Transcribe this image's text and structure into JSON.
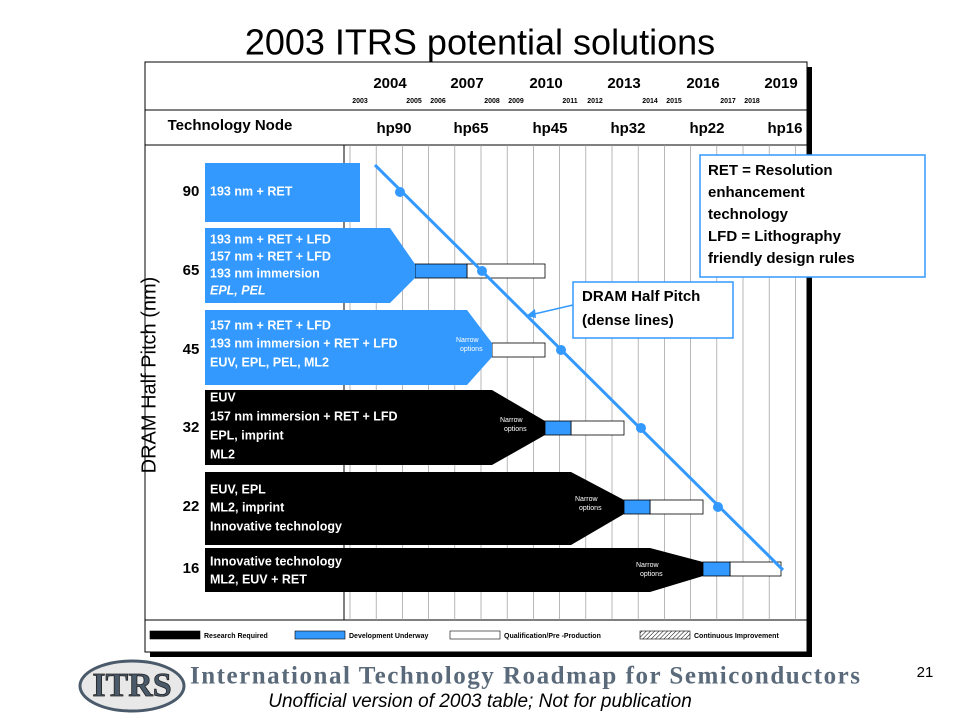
{
  "title": "2003 ITRS potential solutions",
  "header": {
    "major_years": [
      "2004",
      "2007",
      "2010",
      "2013",
      "2016",
      "2019"
    ],
    "minor_years": [
      "2003",
      "2005",
      "2006",
      "2008",
      "2009",
      "2011",
      "2012",
      "2014",
      "2015",
      "2017",
      "2018"
    ],
    "node_label": "Technology Node",
    "nodes": [
      "hp90",
      "hp65",
      "hp45",
      "hp32",
      "hp22",
      "hp16"
    ]
  },
  "y_axis_label": "DRAM Half Pitch (nm)",
  "half_pitches": [
    "90",
    "65",
    "45",
    "32",
    "22",
    "16"
  ],
  "bands": [
    {
      "lines": [
        "193 nm + RET"
      ]
    },
    {
      "lines": [
        "193 nm + RET + LFD",
        "157 nm + RET + LFD",
        "193 nm immersion",
        "EPL, PEL"
      ]
    },
    {
      "lines": [
        "157 nm + RET + LFD",
        "193 nm immersion  + RET + LFD",
        "EUV, EPL, PEL, ML2"
      ],
      "narrow": [
        "Narrow",
        "options"
      ]
    },
    {
      "lines": [
        "EUV",
        "157 nm immersion  + RET + LFD",
        "EPL, imprint",
        "ML2"
      ],
      "narrow": [
        "Narrow",
        "options"
      ]
    },
    {
      "lines": [
        "EUV, EPL",
        "ML2, imprint",
        "Innovative technology"
      ],
      "narrow": [
        "Narrow",
        "options"
      ]
    },
    {
      "lines": [
        "Innovative technology",
        "ML2, EUV + RET"
      ],
      "narrow": [
        "Narrow",
        "options"
      ]
    }
  ],
  "callouts": {
    "definitions": [
      "RET = Resolution",
      "enhancement",
      "technology",
      "LFD = Lithography",
      "friendly design rules"
    ],
    "dram_line": [
      "DRAM Half Pitch",
      "(dense lines)"
    ]
  },
  "legend": [
    "Research  Required",
    "Development  Underway",
    "Qualification/Pre  -Production",
    "Continuous Improvement"
  ],
  "footer": {
    "logo": "ITRS",
    "banner": "International Technology Roadmap for Semiconductors",
    "page_number": "21",
    "disclaimer": "Unofficial version of 2003 table; Not for publication"
  }
}
